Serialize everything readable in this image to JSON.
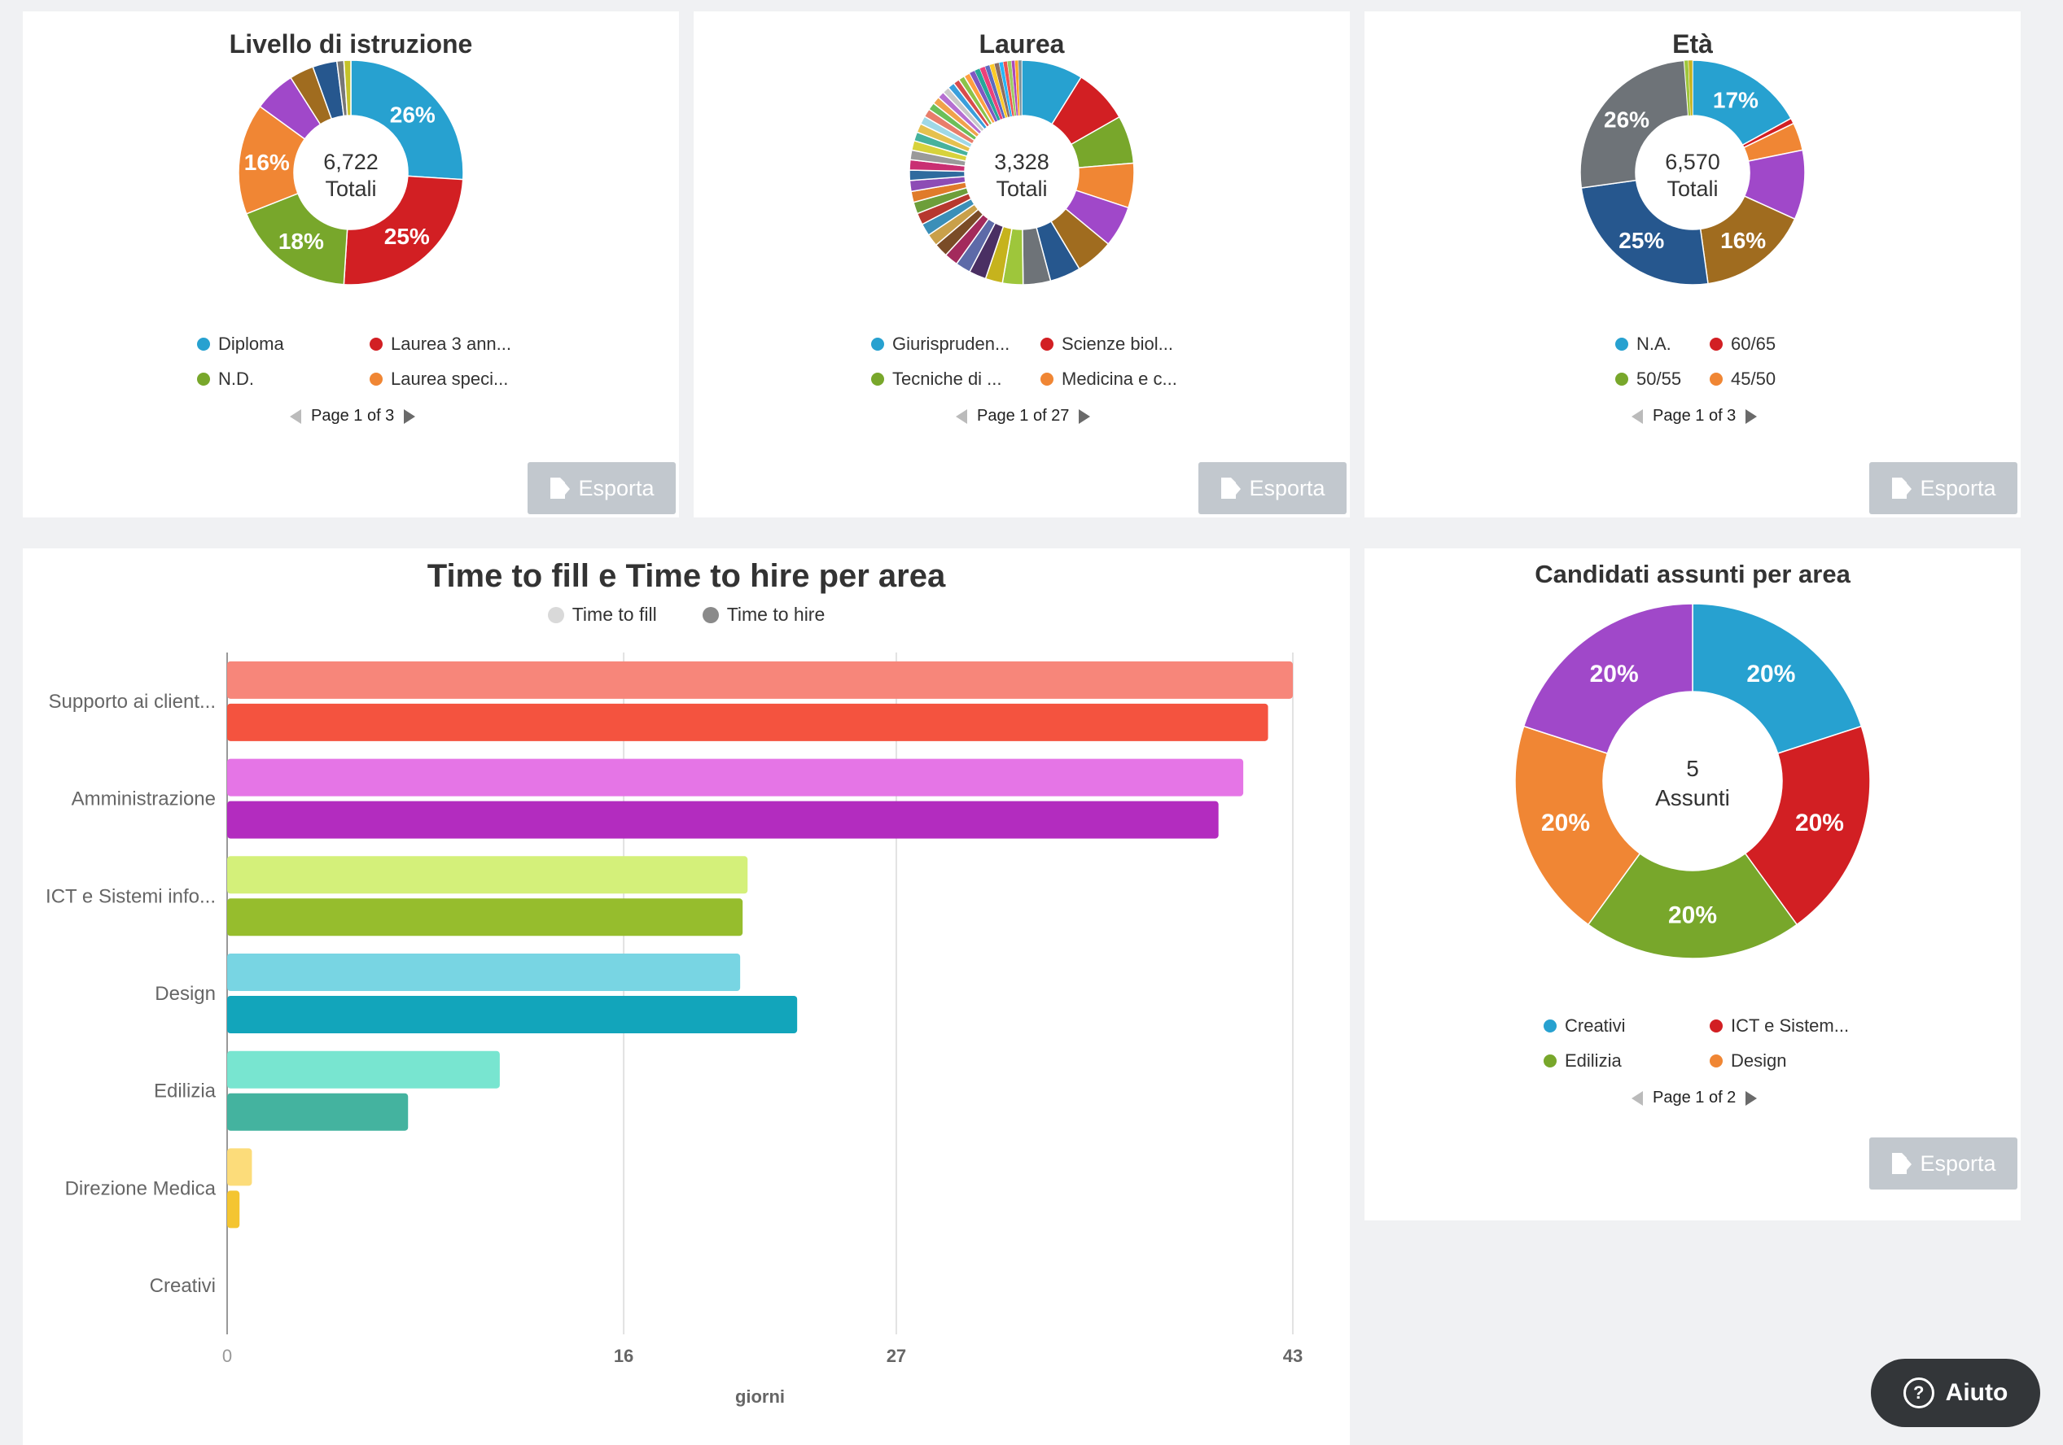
{
  "donuts": [
    {
      "id": "istruzione",
      "title": "Livello di istruzione",
      "center_value": "6,722",
      "center_label": "Totali",
      "slices": [
        {
          "pct": 26,
          "color": "#27a1d0",
          "label": "26%"
        },
        {
          "pct": 25,
          "color": "#d21f23",
          "label": "25%"
        },
        {
          "pct": 18,
          "color": "#78a72b",
          "label": "18%"
        },
        {
          "pct": 16,
          "color": "#f08634",
          "label": "16%"
        },
        {
          "pct": 6,
          "color": "#a048c9",
          "label": ""
        },
        {
          "pct": 3.5,
          "color": "#a06c1f",
          "label": ""
        },
        {
          "pct": 3.5,
          "color": "#26578e",
          "label": ""
        },
        {
          "pct": 1,
          "color": "#777777",
          "label": ""
        },
        {
          "pct": 1,
          "color": "#c5c22a",
          "label": ""
        }
      ],
      "legend": [
        {
          "label": "Diploma",
          "color": "#27a1d0"
        },
        {
          "label": "Laurea 3 ann...",
          "color": "#d21f23"
        },
        {
          "label": "N.D.",
          "color": "#78a72b"
        },
        {
          "label": "Laurea speci...",
          "color": "#f08634"
        }
      ],
      "pager": "Page 1 of 3"
    },
    {
      "id": "laurea",
      "title": "Laurea",
      "center_value": "3,328",
      "center_label": "Totali",
      "slices": [
        {
          "pct": 9,
          "color": "#27a1d0",
          "label": ""
        },
        {
          "pct": 8,
          "color": "#d21f23",
          "label": ""
        },
        {
          "pct": 7,
          "color": "#78a72b",
          "label": ""
        },
        {
          "pct": 6.5,
          "color": "#f08634",
          "label": ""
        },
        {
          "pct": 6,
          "color": "#a048c9",
          "label": ""
        },
        {
          "pct": 5.5,
          "color": "#a06c1f",
          "label": ""
        },
        {
          "pct": 4.5,
          "color": "#26578e",
          "label": ""
        },
        {
          "pct": 4,
          "color": "#6e7378",
          "label": ""
        },
        {
          "pct": 3,
          "color": "#9ec63b",
          "label": ""
        },
        {
          "pct": 2.5,
          "color": "#c6b31d",
          "label": ""
        },
        {
          "pct": 2.5,
          "color": "#4a2f63",
          "label": ""
        },
        {
          "pct": 2.2,
          "color": "#5d6aa8",
          "label": ""
        },
        {
          "pct": 2,
          "color": "#a32a5c",
          "label": ""
        },
        {
          "pct": 2,
          "color": "#7a4c27",
          "label": ""
        },
        {
          "pct": 1.8,
          "color": "#c9a04a",
          "label": ""
        },
        {
          "pct": 1.8,
          "color": "#3b8fb8",
          "label": ""
        },
        {
          "pct": 1.7,
          "color": "#b7382f",
          "label": ""
        },
        {
          "pct": 1.7,
          "color": "#6d9e3a",
          "label": ""
        },
        {
          "pct": 1.6,
          "color": "#e07b2a",
          "label": ""
        },
        {
          "pct": 1.6,
          "color": "#8d4cb5",
          "label": ""
        },
        {
          "pct": 1.5,
          "color": "#2f6b9e",
          "label": ""
        },
        {
          "pct": 1.5,
          "color": "#c92f72",
          "label": ""
        },
        {
          "pct": 1.4,
          "color": "#9a9a9a",
          "label": ""
        },
        {
          "pct": 1.4,
          "color": "#d7d23c",
          "label": ""
        },
        {
          "pct": 1.3,
          "color": "#46b29d",
          "label": ""
        },
        {
          "pct": 1.3,
          "color": "#e5c14e",
          "label": ""
        },
        {
          "pct": 1.2,
          "color": "#9fd8e6",
          "label": ""
        },
        {
          "pct": 1.2,
          "color": "#e87d6b",
          "label": ""
        },
        {
          "pct": 1.1,
          "color": "#6bbf59",
          "label": ""
        },
        {
          "pct": 1.1,
          "color": "#f0a24b",
          "label": ""
        },
        {
          "pct": 1.0,
          "color": "#b56fd1",
          "label": ""
        },
        {
          "pct": 1.0,
          "color": "#c8c8c8",
          "label": ""
        },
        {
          "pct": 1.0,
          "color": "#3a9fdc",
          "label": ""
        },
        {
          "pct": 0.9,
          "color": "#d94c4c",
          "label": ""
        },
        {
          "pct": 0.9,
          "color": "#8bc34a",
          "label": ""
        },
        {
          "pct": 0.9,
          "color": "#ff9f40",
          "label": ""
        },
        {
          "pct": 0.8,
          "color": "#7e57c2",
          "label": ""
        },
        {
          "pct": 0.8,
          "color": "#26a69a",
          "label": ""
        },
        {
          "pct": 0.8,
          "color": "#ec407a",
          "label": ""
        },
        {
          "pct": 0.7,
          "color": "#5c6bc0",
          "label": ""
        },
        {
          "pct": 0.7,
          "color": "#ffca28",
          "label": ""
        },
        {
          "pct": 0.7,
          "color": "#8d6e63",
          "label": ""
        },
        {
          "pct": 0.6,
          "color": "#29b6f6",
          "label": ""
        },
        {
          "pct": 0.6,
          "color": "#ef5350",
          "label": ""
        },
        {
          "pct": 0.6,
          "color": "#9ccc65",
          "label": ""
        },
        {
          "pct": 0.5,
          "color": "#ab47bc",
          "label": ""
        },
        {
          "pct": 0.5,
          "color": "#ffa726",
          "label": ""
        },
        {
          "pct": 0.5,
          "color": "#78909c",
          "label": ""
        }
      ],
      "legend": [
        {
          "label": "Giurispruden...",
          "color": "#27a1d0"
        },
        {
          "label": "Scienze biol...",
          "color": "#d21f23"
        },
        {
          "label": "Tecniche di ...",
          "color": "#78a72b"
        },
        {
          "label": "Medicina e c...",
          "color": "#f08634"
        }
      ],
      "pager": "Page 1 of 27"
    },
    {
      "id": "eta",
      "title": "Età",
      "center_value": "6,570",
      "center_label": "Totali",
      "slices": [
        {
          "pct": 17,
          "color": "#27a1d0",
          "label": "17%"
        },
        {
          "pct": 0.8,
          "color": "#d21f23",
          "label": ""
        },
        {
          "pct": 4,
          "color": "#f08634",
          "label": ""
        },
        {
          "pct": 10,
          "color": "#a048c9",
          "label": ""
        },
        {
          "pct": 16,
          "color": "#a06c1f",
          "label": "16%"
        },
        {
          "pct": 25,
          "color": "#26578e",
          "label": "25%"
        },
        {
          "pct": 26,
          "color": "#6e7378",
          "label": "26%"
        },
        {
          "pct": 0.6,
          "color": "#9ec63b",
          "label": ""
        },
        {
          "pct": 0.6,
          "color": "#c6b31d",
          "label": ""
        }
      ],
      "legend": [
        {
          "label": "N.A.",
          "color": "#27a1d0"
        },
        {
          "label": "60/65",
          "color": "#d21f23"
        },
        {
          "label": "50/55",
          "color": "#78a72b"
        },
        {
          "label": "45/50",
          "color": "#f08634"
        }
      ],
      "pager": "Page 1 of 3"
    },
    {
      "id": "assunti",
      "title": "Candidati assunti per area",
      "center_value": "5",
      "center_label": "Assunti",
      "slices": [
        {
          "pct": 20,
          "color": "#27a1d0",
          "label": "20%"
        },
        {
          "pct": 20,
          "color": "#d21f23",
          "label": "20%"
        },
        {
          "pct": 20,
          "color": "#78a72b",
          "label": "20%"
        },
        {
          "pct": 20,
          "color": "#f08634",
          "label": "20%"
        },
        {
          "pct": 20,
          "color": "#a048c9",
          "label": "20%"
        }
      ],
      "legend": [
        {
          "label": "Creativi",
          "color": "#27a1d0"
        },
        {
          "label": "ICT e Sistem...",
          "color": "#d21f23"
        },
        {
          "label": "Edilizia",
          "color": "#78a72b"
        },
        {
          "label": "Design",
          "color": "#f08634"
        }
      ],
      "pager": "Page 1 of 2"
    }
  ],
  "export_label": "Esporta",
  "help_label": "Aiuto",
  "chart_data": {
    "type": "bar",
    "orientation": "horizontal",
    "title": "Time to fill e Time to hire per area",
    "xlabel": "giorni",
    "ylabel": "",
    "xlim": [
      0,
      43
    ],
    "x_ticks": [
      0,
      16,
      27,
      43
    ],
    "grid": true,
    "legend_position": "top",
    "categories": [
      "Supporto ai client...",
      "Amministrazione",
      "ICT e Sistemi info...",
      "Design",
      "Edilizia",
      "Direzione Medica",
      "Creativi"
    ],
    "series": [
      {
        "name": "Time to fill",
        "legend_color": "#d9d9d9",
        "values": [
          43,
          41,
          21,
          20.7,
          11,
          1,
          0
        ]
      },
      {
        "name": "Time to hire",
        "legend_color": "#8a8a8a",
        "values": [
          42,
          40,
          20.8,
          23,
          7.3,
          0.5,
          0
        ]
      }
    ],
    "bar_colors": [
      {
        "fill": "#f7867a",
        "hire": "#f4533f"
      },
      {
        "fill": "#e575e6",
        "hire": "#b32cbf"
      },
      {
        "fill": "#d4f07a",
        "hire": "#96bd2d"
      },
      {
        "fill": "#78d5e3",
        "hire": "#12a5bb"
      },
      {
        "fill": "#78e5d0",
        "hire": "#44b39f"
      },
      {
        "fill": "#fcdc7a",
        "hire": "#f4c531"
      },
      {
        "fill": "#cccccc",
        "hire": "#999999"
      }
    ]
  }
}
